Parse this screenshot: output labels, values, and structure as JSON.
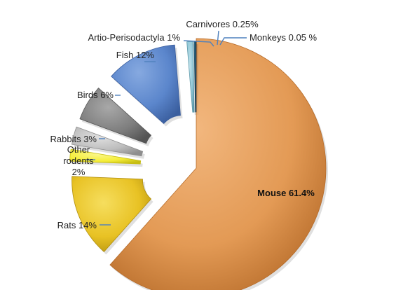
{
  "chart_data": {
    "type": "pie",
    "style": "exploded-3d",
    "slices": [
      {
        "label": "Mouse",
        "value": 61.4,
        "value_text": "61.4%",
        "display": "Mouse 61.4%",
        "color": "#E39A55",
        "color_dark": "#B56A28",
        "color_light": "#F2B77E"
      },
      {
        "label": "Rats",
        "value": 14,
        "value_text": "14%",
        "display": "Rats 14%",
        "color": "#E8C224",
        "color_dark": "#B08E0E",
        "color_light": "#F6DE5E"
      },
      {
        "label": "Other rodents",
        "value": 2,
        "value_text": "2%",
        "display": "Other rodents 2%",
        "display_lines": [
          "Other",
          "rodents",
          "2%"
        ],
        "color": "#F5EE3A",
        "color_dark": "#C6BD12",
        "color_light": "#FBF78A"
      },
      {
        "label": "Rabbits",
        "value": 3,
        "value_text": "3%",
        "display": "Rabbits 3%",
        "color": "#BDBDBD",
        "color_dark": "#8E8E8E",
        "color_light": "#E0E0E0"
      },
      {
        "label": "Birds",
        "value": 6,
        "value_text": "6%",
        "display": "Birds 6%",
        "color": "#7E7E7E",
        "color_dark": "#545454",
        "color_light": "#A8A8A8"
      },
      {
        "label": "Fish",
        "value": 12,
        "value_text": "12%",
        "display": "Fish 12%",
        "color": "#5B86CC",
        "color_dark": "#3A5E9E",
        "color_light": "#86A9E0"
      },
      {
        "label": "Artio-Perisodactyla",
        "value": 1,
        "value_text": "1%",
        "display": "Artio-Perisodactyla 1%",
        "color": "#8FC6D6",
        "color_dark": "#5E9AAB",
        "color_light": "#BFE1EA"
      },
      {
        "label": "Carnivores",
        "value": 0.25,
        "value_text": "0.25%",
        "display": "Carnivores 0.25%",
        "color": "#2E6E8E",
        "color_dark": "#1D4B62",
        "color_light": "#4F91B2"
      },
      {
        "label": "Monkeys",
        "value": 0.05,
        "value_text": "0.05 %",
        "display": "Monkeys 0.05 %",
        "color": "#1F3A55",
        "color_dark": "#142638",
        "color_light": "#35597D"
      }
    ],
    "title": "",
    "legend": "none",
    "label_style": "outside labels with leader lines; Mouse label inside slice"
  }
}
